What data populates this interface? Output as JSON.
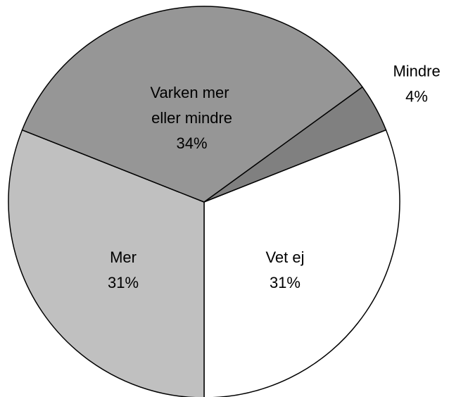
{
  "chart_data": {
    "type": "pie",
    "categories": [
      "Mindre",
      "Vet ej",
      "Mer",
      "Varken mer eller mindre"
    ],
    "values": [
      4,
      31,
      31,
      34
    ],
    "value_labels": [
      "4%",
      "31%",
      "31%",
      "34%"
    ],
    "colors": [
      "#808080",
      "#ffffff",
      "#c0c0c0",
      "#969696"
    ]
  }
}
